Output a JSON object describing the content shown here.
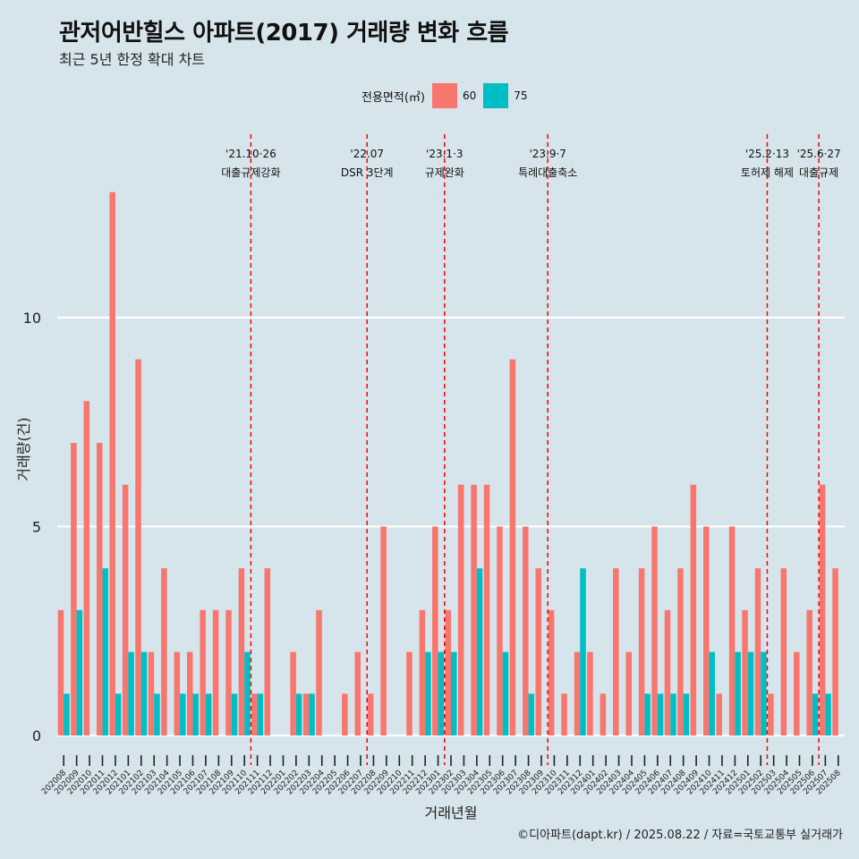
{
  "title": "관저어반힐스 아파트(2017) 거래량 변화 흐름",
  "subtitle": "최근 5년 한정 확대 차트",
  "caption": "©디아파트(dapt.kr) / 2025.08.22 / 자료=국토교통부 실거래가",
  "colors": {
    "background": "#d6e4eb",
    "s60": "#f8766d",
    "s75": "#00bfc4",
    "event_line": "#ff0000",
    "grid": "#ffffff"
  },
  "legend": {
    "title": "전용면적(㎡)",
    "items": [
      "60",
      "75"
    ]
  },
  "chart_data": {
    "type": "bar",
    "xlabel": "거래년월",
    "ylabel": "거래량(건)",
    "ylim": [
      -0.6,
      14.6
    ],
    "yticks": [
      0,
      5,
      10
    ],
    "grid": true,
    "legend_position": "top",
    "categories": [
      "202008",
      "202009",
      "202010",
      "202011",
      "202012",
      "202101",
      "202102",
      "202103",
      "202104",
      "202105",
      "202106",
      "202107",
      "202108",
      "202109",
      "202110",
      "202111",
      "202112",
      "202201",
      "202202",
      "202203",
      "202204",
      "202205",
      "202206",
      "202207",
      "202208",
      "202209",
      "202210",
      "202211",
      "202212",
      "202301",
      "202302",
      "202303",
      "202304",
      "202305",
      "202306",
      "202307",
      "202308",
      "202309",
      "202310",
      "202311",
      "202312",
      "202401",
      "202402",
      "202403",
      "202404",
      "202405",
      "202406",
      "202407",
      "202408",
      "202409",
      "202410",
      "202411",
      "202412",
      "202501",
      "202502",
      "202503",
      "202504",
      "202505",
      "202506",
      "202507",
      "202508"
    ],
    "series": [
      {
        "name": "60",
        "values": [
          3,
          7,
          8,
          7,
          13,
          6,
          9,
          2,
          4,
          2,
          2,
          3,
          3,
          3,
          4,
          1,
          4,
          0,
          2,
          1,
          3,
          0,
          1,
          2,
          1,
          5,
          0,
          2,
          3,
          5,
          3,
          6,
          6,
          6,
          5,
          9,
          5,
          4,
          3,
          1,
          2,
          2,
          1,
          4,
          2,
          4,
          5,
          3,
          4,
          6,
          5,
          1,
          5,
          3,
          4,
          1,
          4,
          2,
          3,
          6,
          4
        ]
      },
      {
        "name": "75",
        "values": [
          1,
          3,
          0,
          4,
          1,
          2,
          2,
          1,
          0,
          1,
          1,
          1,
          0,
          1,
          2,
          1,
          0,
          0,
          1,
          1,
          0,
          0,
          0,
          0,
          0,
          0,
          0,
          0,
          2,
          2,
          2,
          0,
          4,
          0,
          2,
          0,
          1,
          0,
          0,
          0,
          4,
          0,
          0,
          0,
          0,
          1,
          1,
          1,
          1,
          0,
          2,
          0,
          2,
          2,
          2,
          0,
          0,
          0,
          1,
          1,
          0
        ]
      }
    ],
    "events": [
      {
        "date": "'21.10·26",
        "label": "대출규제강화",
        "index": 14
      },
      {
        "date": "'22.07",
        "label": "DSR 3단계",
        "index": 23
      },
      {
        "date": "'23.1·3",
        "label": "규제완화",
        "index": 29
      },
      {
        "date": "'23.9·7",
        "label": "특례대출축소",
        "index": 37
      },
      {
        "date": "'25.2·13",
        "label": "토허제 해제",
        "index": 54
      },
      {
        "date": "'25.6·27",
        "label": "대출규제",
        "index": 58
      }
    ]
  }
}
